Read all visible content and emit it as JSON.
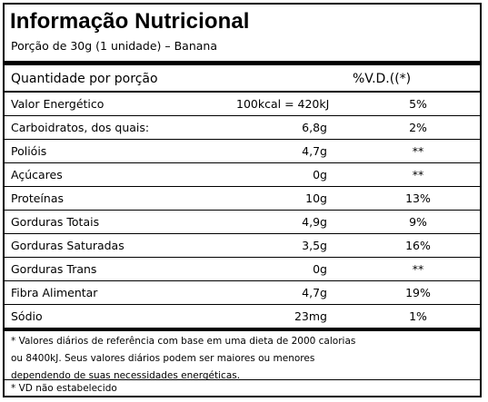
{
  "title": "Informação Nutricional",
  "serving": "Porção de 30g (1 unidade) – Banana",
  "header": {
    "quantity_label": "Quantidade por porção",
    "vd_label": "%V.D.((*)"
  },
  "rows": [
    {
      "name": "Valor Energético",
      "qty": "100kcal = 420kJ",
      "vd": "5%"
    },
    {
      "name": "Carboidratos, dos quais:",
      "qty": "6,8g",
      "vd": "2%"
    },
    {
      "name": "Polióis",
      "qty": "4,7g",
      "vd": "**"
    },
    {
      "name": "Açúcares",
      "qty": "0g",
      "vd": "**"
    },
    {
      "name": "Proteínas",
      "qty": "10g",
      "vd": "13%"
    },
    {
      "name": "Gorduras Totais",
      "qty": "4,9g",
      "vd": "9%"
    },
    {
      "name": "Gorduras Saturadas",
      "qty": "3,5g",
      "vd": "16%"
    },
    {
      "name": "Gorduras Trans",
      "qty": "0g",
      "vd": "**"
    },
    {
      "name": "Fibra Alimentar",
      "qty": "4,7g",
      "vd": "19%"
    },
    {
      "name": "Sódio",
      "qty": "23mg",
      "vd": "1%"
    }
  ],
  "footnote": "* Valores diários de referência com base em uma dieta de 2000 calorias ou 8400kJ. Seus valores diários podem ser maiores ou menores dependendo de suas necessidades energéticas.",
  "footnote2": "* VD não estabelecido"
}
